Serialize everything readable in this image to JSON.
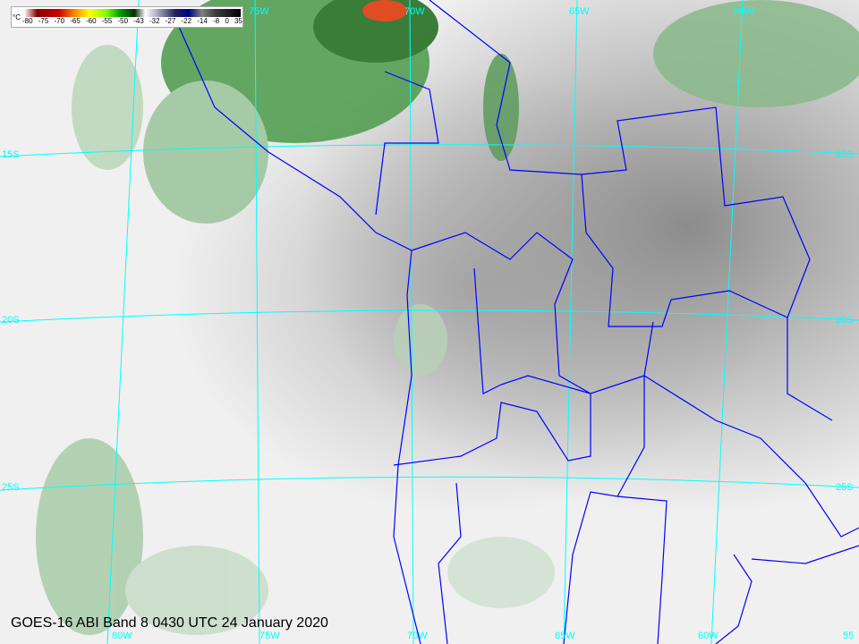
{
  "title": "GOES-16 ABI Band 8 0430 UTC 24 January 2020",
  "colorbar": {
    "unit": "°C",
    "ticks": [
      "-80",
      "-75",
      "-70",
      "-65",
      "-60",
      "-55",
      "-50",
      "-43",
      "-32",
      "-27",
      "-22",
      "-14",
      "-8",
      "0",
      "35"
    ]
  },
  "grid": {
    "top_lon_labels": [
      "75W",
      "70W",
      "65W",
      "60W"
    ],
    "bottom_lon_labels": [
      "80W",
      "75W",
      "70W",
      "65W",
      "60W",
      "55"
    ],
    "left_lat_labels": [
      "15S",
      "20S",
      "25S"
    ],
    "right_lat_labels": [
      "15S",
      "20S",
      "25S"
    ]
  },
  "colors": {
    "grid": "#00ffff",
    "borders": "#0000ff",
    "cold_cloud": "#3a8a3a"
  }
}
